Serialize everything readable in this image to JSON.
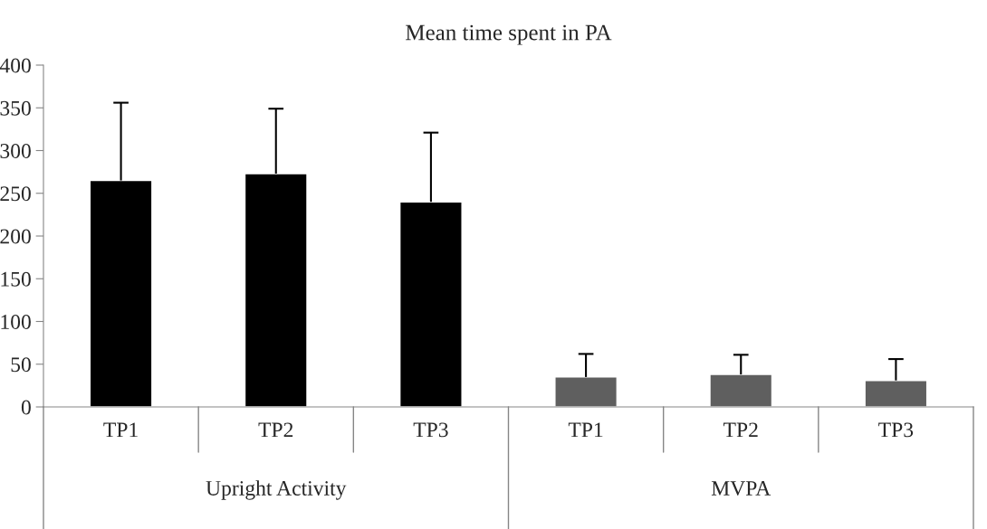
{
  "chart_data": {
    "type": "bar",
    "title": "Mean time spent in PA",
    "categories": [
      "TP1",
      "TP2",
      "TP3",
      "TP1",
      "TP2",
      "TP3"
    ],
    "values": [
      265,
      273,
      240,
      35,
      38,
      31
    ],
    "errors": [
      [
        265,
        356
      ],
      [
        273,
        349
      ],
      [
        240,
        321
      ],
      [
        35,
        62
      ],
      [
        38,
        61
      ],
      [
        31,
        56
      ]
    ],
    "colors": [
      "#000000",
      "#000000",
      "#000000",
      "#5f5f5f",
      "#5f5f5f",
      "#5f5f5f"
    ],
    "annotations": [
      "Upright Activity",
      "MVPA"
    ],
    "ylim": [
      0,
      400
    ],
    "yticks": [
      0,
      50,
      100,
      150,
      200,
      250,
      300,
      350,
      400
    ],
    "grid": false,
    "legend": false
  }
}
